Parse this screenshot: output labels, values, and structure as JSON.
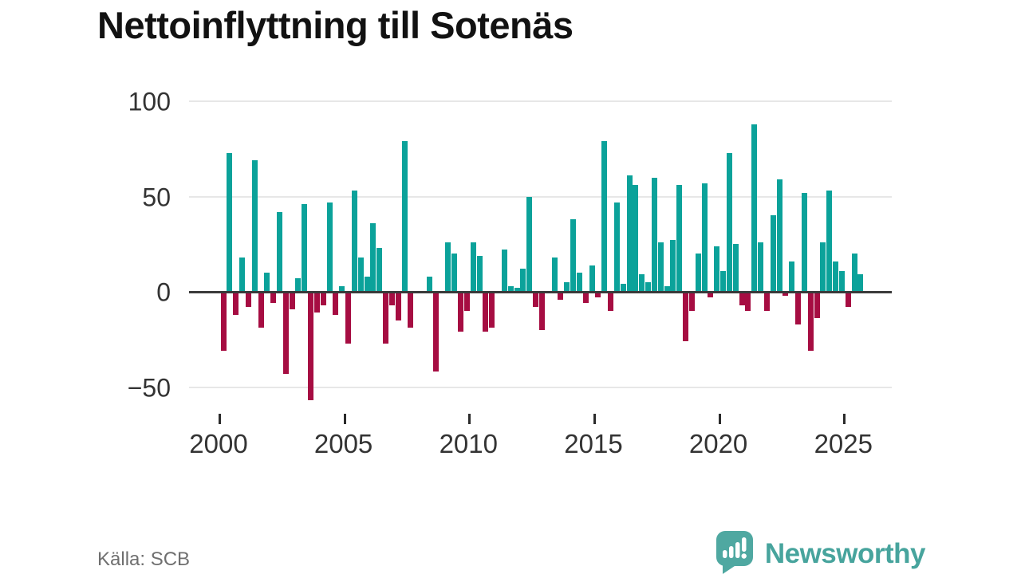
{
  "title": "Nettoinflyttning till Sotenäs",
  "source": "Källa: SCB",
  "branding": {
    "name": "Newsworthy",
    "color": "#47a49d"
  },
  "chart_data": {
    "type": "bar",
    "title": "Nettoinflyttning till Sotenäs",
    "frequency": "quarterly",
    "start_year": 2000,
    "start_quarter": 1,
    "series": [
      {
        "name": "Nettoinflyttning",
        "values": [
          -31,
          73,
          -12,
          18,
          -8,
          69,
          -19,
          10,
          -6,
          42,
          -43,
          -9,
          7,
          46,
          -57,
          -11,
          -7,
          47,
          -12,
          3,
          -27,
          53,
          18,
          8,
          36,
          23,
          -27,
          -7,
          -15,
          79,
          -19,
          0,
          0,
          8,
          -42,
          0,
          26,
          20,
          -21,
          -10,
          26,
          19,
          -21,
          -19,
          0,
          22,
          3,
          2,
          12,
          50,
          -8,
          -20,
          0,
          18,
          -4,
          5,
          38,
          10,
          -6,
          14,
          -3,
          79,
          -10,
          47,
          4,
          61,
          56,
          9,
          5,
          60,
          26,
          3,
          27,
          56,
          -26,
          -10,
          20,
          57,
          -3,
          24,
          11,
          73,
          25,
          -7,
          -10,
          88,
          26,
          -10,
          40,
          59,
          -2,
          16,
          -17,
          52,
          -31,
          -14,
          26,
          53,
          16,
          11,
          -8,
          20,
          9
        ]
      }
    ],
    "x_ticks": [
      2000,
      2005,
      2010,
      2015,
      2020,
      2025
    ],
    "y_ticks": [
      100,
      50,
      0,
      -50
    ],
    "y_tick_labels": [
      "100",
      "50",
      "0",
      "−50"
    ],
    "ylim": [
      -60,
      100
    ],
    "grid": "horizontal",
    "legend": "none",
    "colors": {
      "positive": "#0ba29a",
      "negative": "#a60d42",
      "zero_axis": "#3a3a3a",
      "gridline": "#e7e7e7"
    }
  }
}
